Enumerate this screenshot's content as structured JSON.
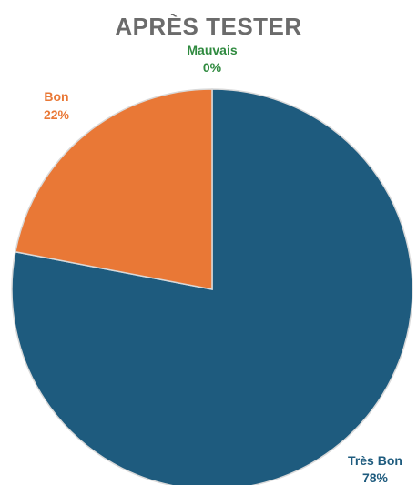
{
  "colors": {
    "title": "#6b6b6b",
    "tres_bon": "#1e5b7e",
    "bon": "#e97836",
    "mauvais": "#2f8a3f",
    "slice_border": "#d9d9d9"
  },
  "chart_data": {
    "type": "pie",
    "title": "APRÈS TESTER",
    "slices": [
      {
        "label": "Mauvais",
        "value": 0,
        "value_label": "0%"
      },
      {
        "label": "Très Bon",
        "value": 78,
        "value_label": "78%"
      },
      {
        "label": "Bon",
        "value": 22,
        "value_label": "22%"
      }
    ]
  }
}
